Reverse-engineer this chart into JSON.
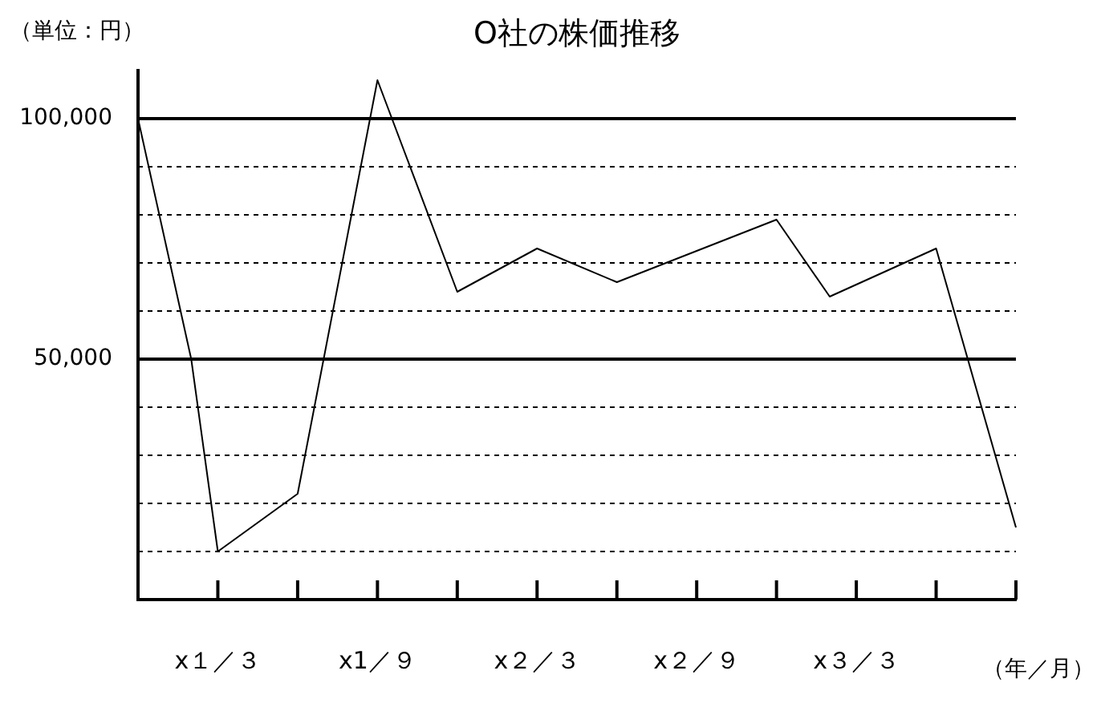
{
  "chart_data": {
    "type": "line",
    "title": "O社の株価推移",
    "ylabel": "（単位：円）",
    "xlabel": "（年／月）",
    "categories": [
      null,
      null,
      null,
      "x１／３",
      null,
      null,
      null,
      null,
      null,
      "x1／９",
      null,
      null,
      null,
      null,
      null,
      "x２／３",
      null,
      null,
      null,
      null,
      null,
      "x２／９",
      null,
      null,
      null,
      null,
      null,
      "x３／３",
      null,
      null,
      null,
      null,
      null,
      null
    ],
    "values": [
      100000,
      null,
      50000,
      10000,
      null,
      null,
      22000,
      null,
      null,
      108000,
      null,
      null,
      64000,
      null,
      null,
      73000,
      null,
      null,
      66000,
      null,
      null,
      null,
      null,
      null,
      79000,
      null,
      63000,
      null,
      null,
      null,
      73000,
      null,
      null,
      15000
    ],
    "color": "#000000",
    "ylim": [
      0,
      110000
    ],
    "yticks": [
      {
        "value": 10000,
        "label": null
      },
      {
        "value": 20000,
        "label": null
      },
      {
        "value": 30000,
        "label": null
      },
      {
        "value": 40000,
        "label": null
      },
      {
        "value": 50000,
        "label": "50,000"
      },
      {
        "value": 60000,
        "label": null
      },
      {
        "value": 70000,
        "label": null
      },
      {
        "value": 80000,
        "label": null
      },
      {
        "value": 90000,
        "label": null
      },
      {
        "value": 100000,
        "label": "100,000"
      }
    ],
    "grid": "y",
    "legend": false,
    "marker": "none",
    "line_style": "solid"
  }
}
